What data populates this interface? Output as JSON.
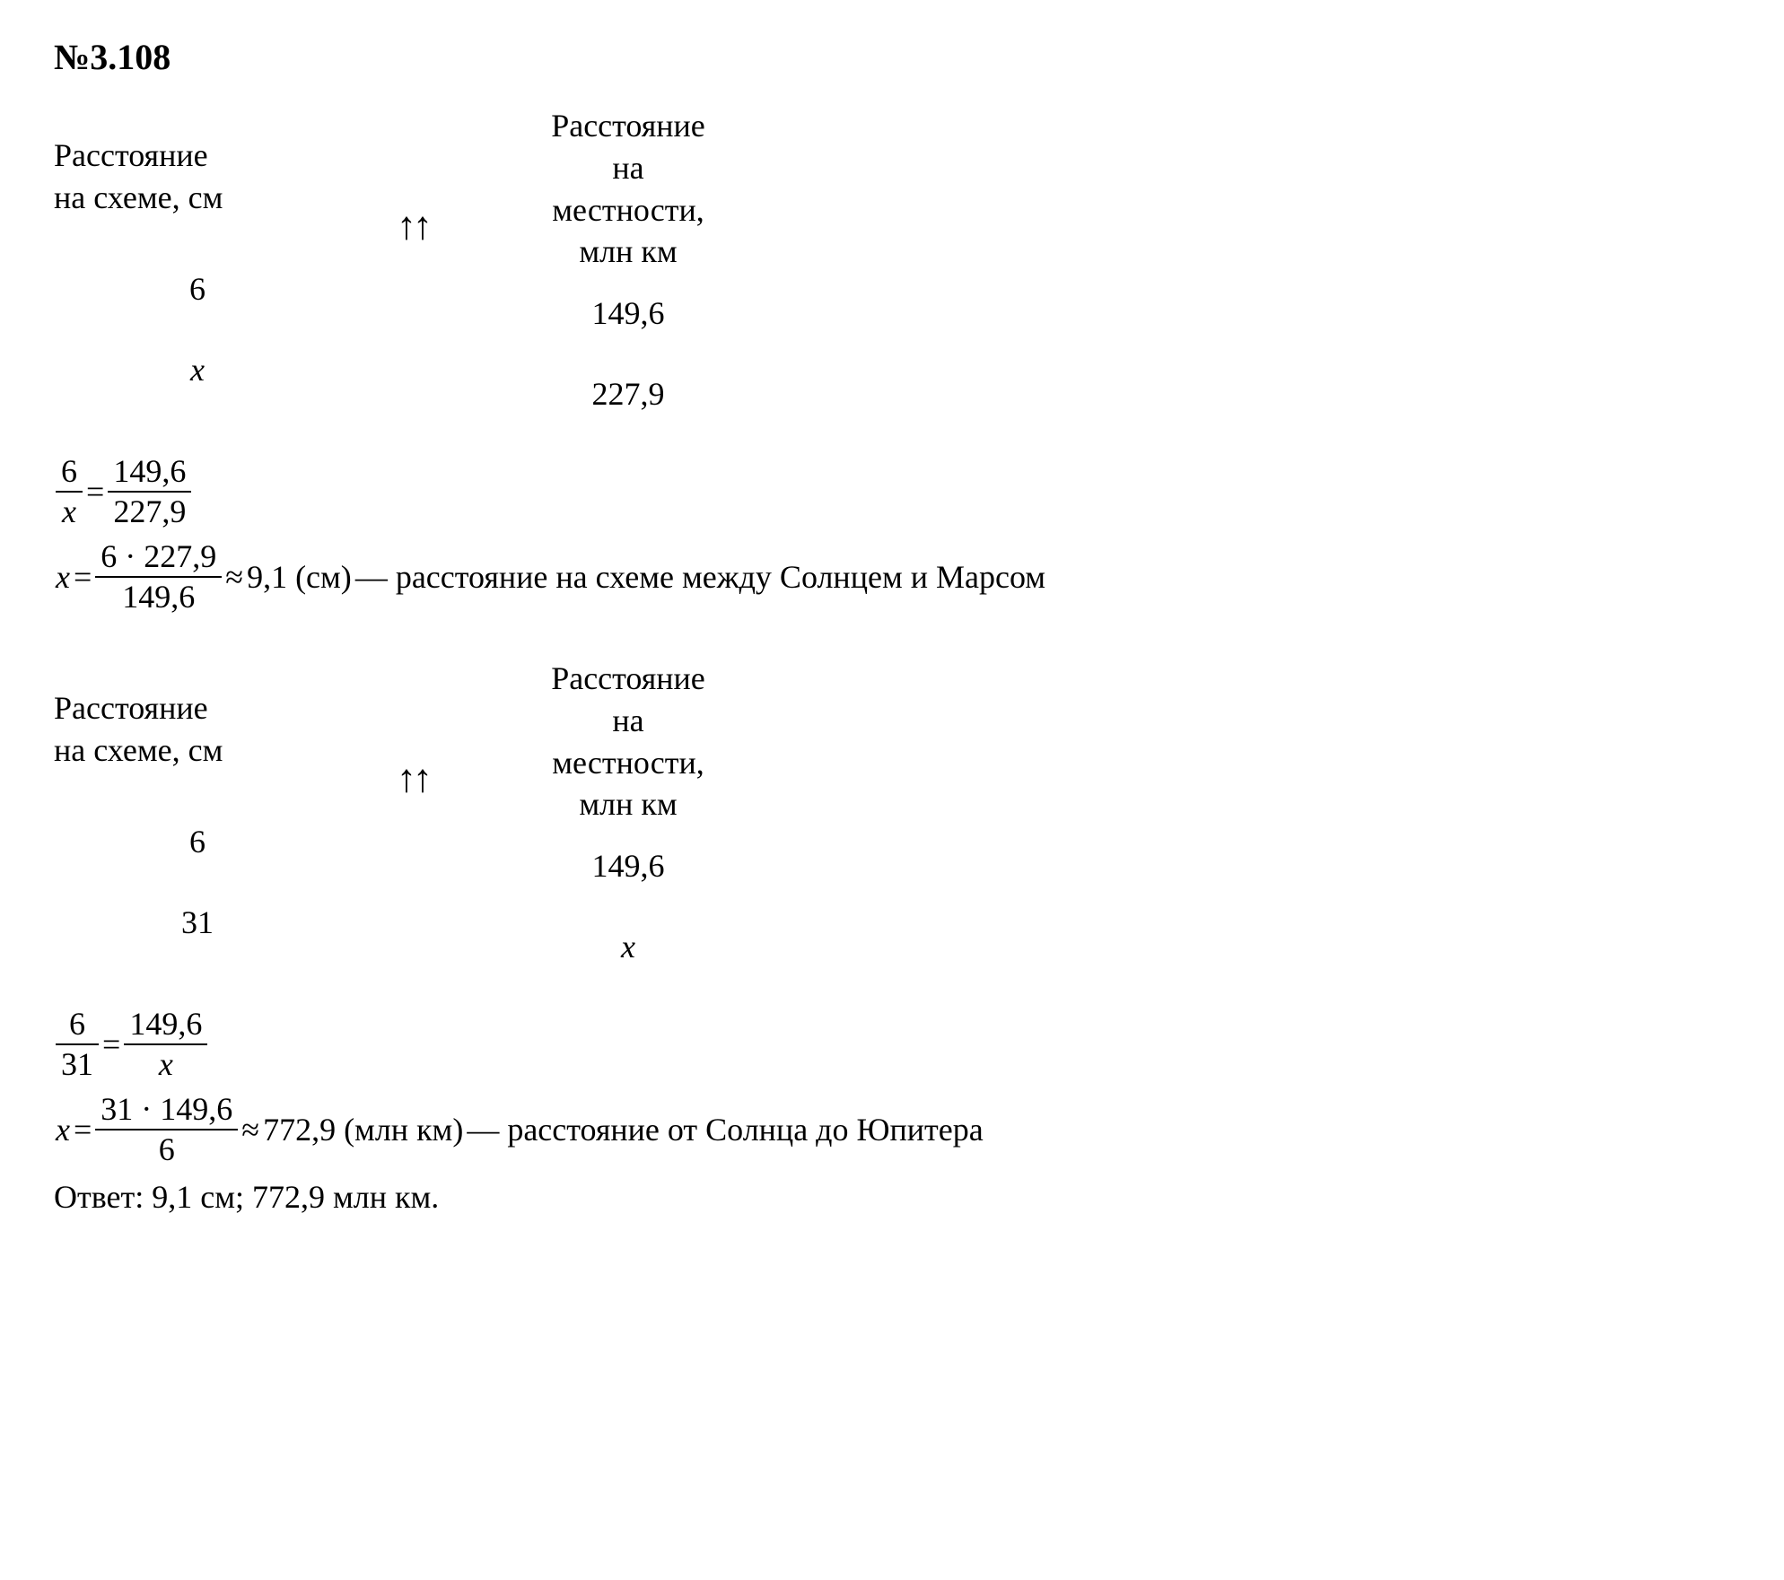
{
  "title": "№3.108",
  "section1": {
    "header_left_l1": "Расстояние",
    "header_left_l2": "на схеме, см",
    "header_mid_l1": "Расстояние",
    "header_mid_l2": "на",
    "header_mid_l3": "местности,",
    "header_mid_l4": "млн км",
    "arrows": "↑↑",
    "row1_left": "6",
    "row1_mid": "149,6",
    "row2_left": "x",
    "row2_mid": "227,9",
    "eq1_lhs_num": "6",
    "eq1_lhs_den": "x",
    "eq1_rhs_num": "149,6",
    "eq1_rhs_den": "227,9",
    "eq1_eq": "=",
    "eq2_lhs": "x",
    "eq2_eq": "=",
    "eq2_frac_num": "6 · 227,9",
    "eq2_frac_den": "149,6",
    "eq2_approx": "≈",
    "eq2_val": "9,1 (см)",
    "eq2_tail": "— расстояние на схеме между Солнцем и Марсом"
  },
  "section2": {
    "header_left_l1": "Расстояние",
    "header_left_l2": "на схеме, см",
    "header_mid_l1": "Расстояние",
    "header_mid_l2": "на",
    "header_mid_l3": "местности,",
    "header_mid_l4": "млн км",
    "arrows": "↑↑",
    "row1_left": "6",
    "row1_mid": "149,6",
    "row2_left": "31",
    "row2_mid": "x",
    "eq1_lhs_num": "6",
    "eq1_lhs_den": "31",
    "eq1_rhs_num": "149,6",
    "eq1_rhs_den": "x",
    "eq1_eq": "=",
    "eq2_lhs": "x",
    "eq2_eq": "=",
    "eq2_frac_num": "31 · 149,6",
    "eq2_frac_den": "6",
    "eq2_approx": "≈",
    "eq2_val": "772,9 (млн км)",
    "eq2_tail": "— расстояние от Солнца до Юпитера"
  },
  "answer": "Ответ: 9,1 см; 772,9 млн км.",
  "colors": {
    "text": "#000000",
    "background": "#ffffff"
  },
  "fonts": {
    "family": "Times New Roman",
    "body_size_pt": 27,
    "title_size_pt": 30
  }
}
